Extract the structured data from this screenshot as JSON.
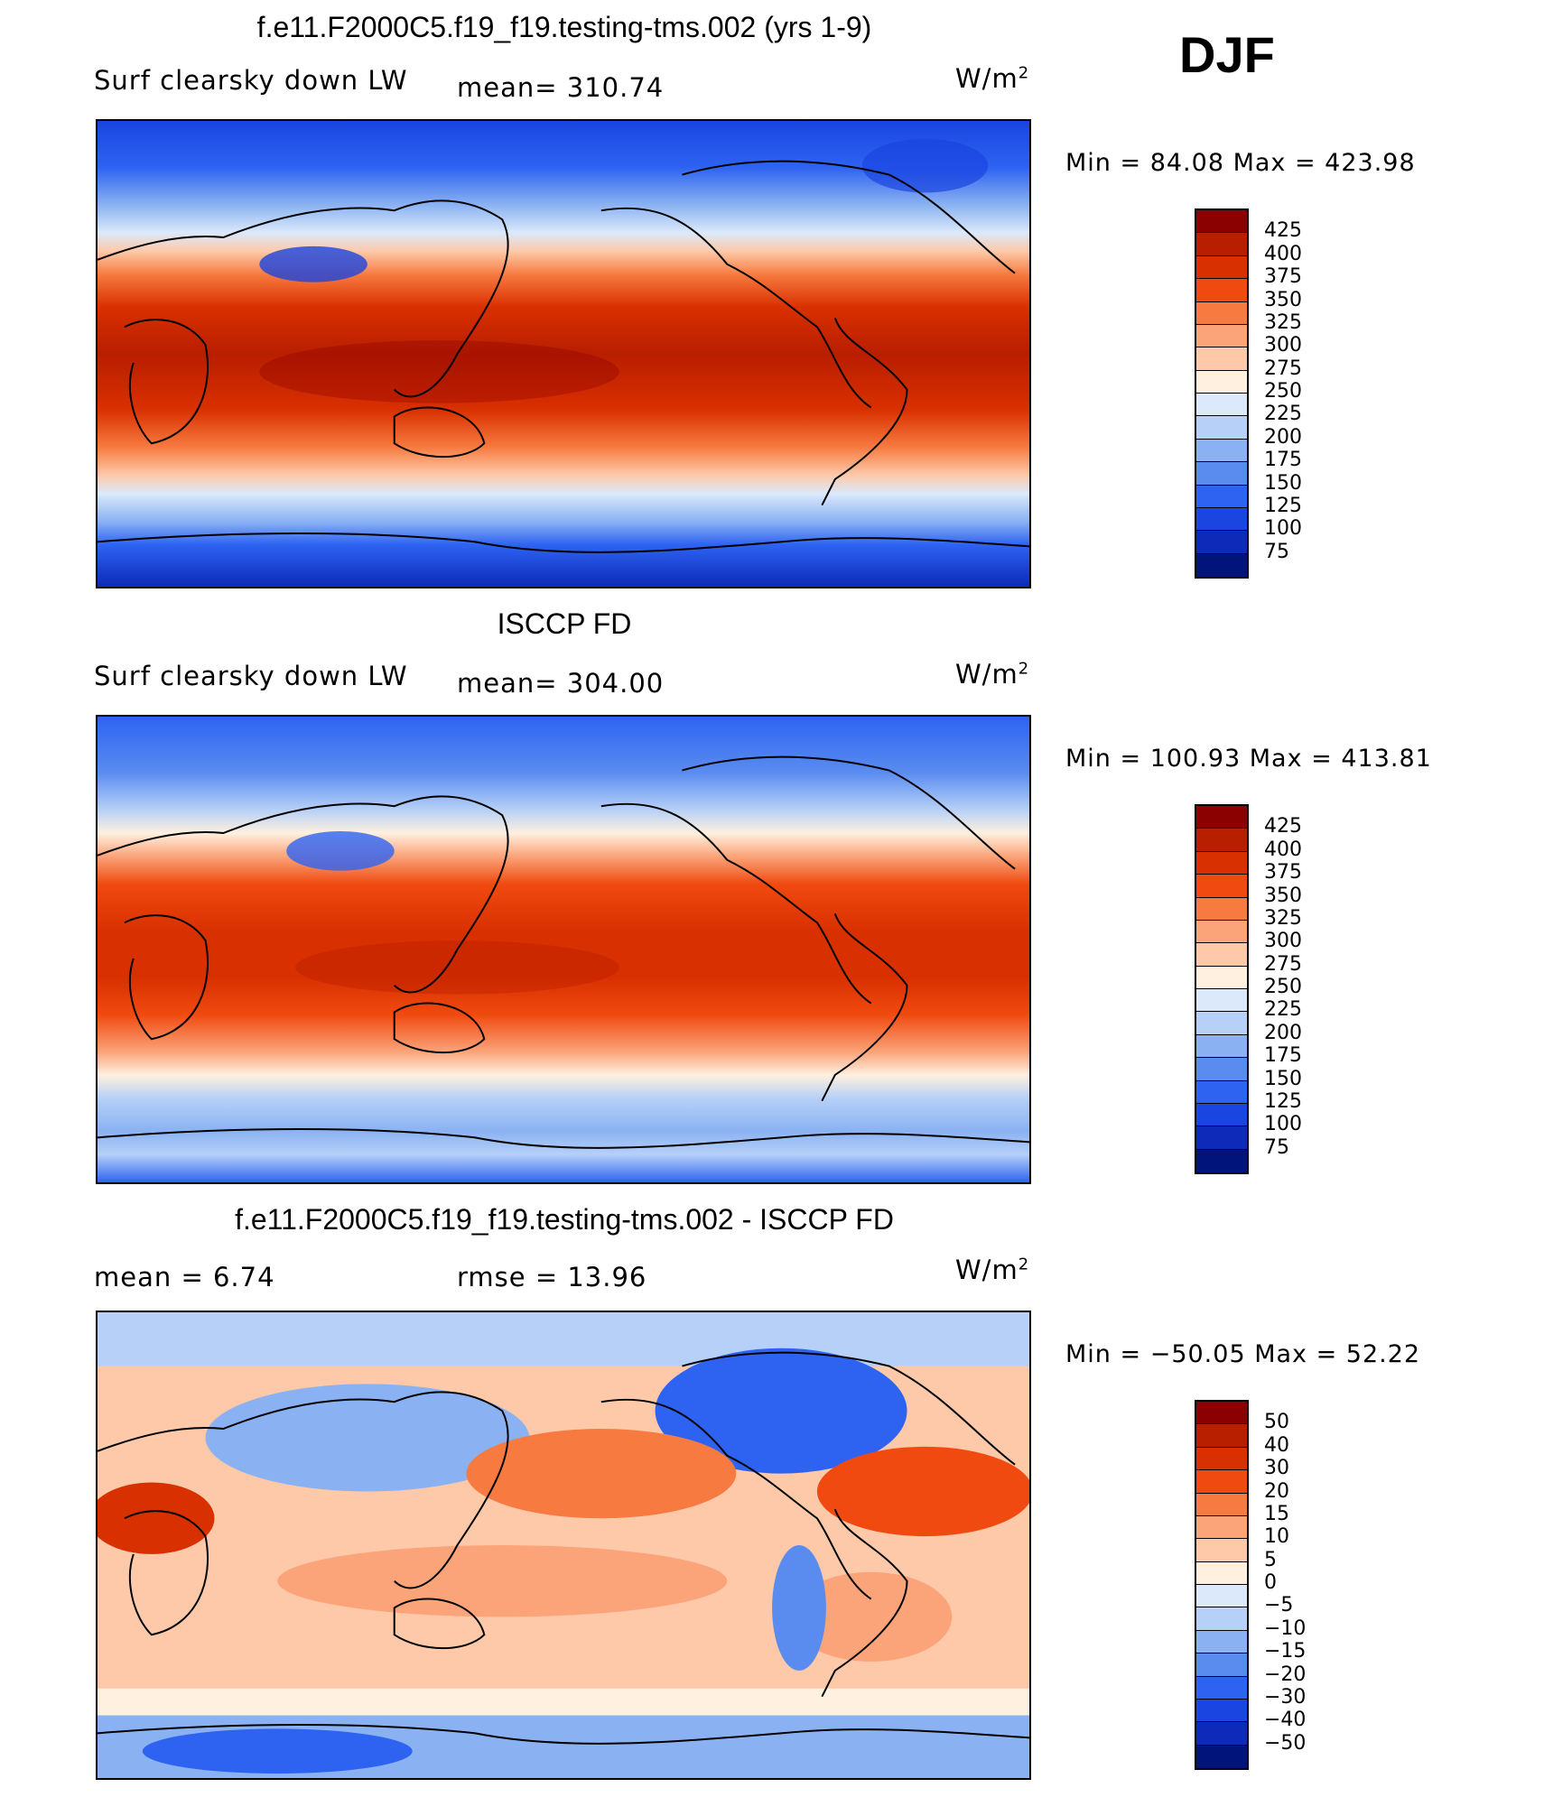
{
  "season": "DJF",
  "panels": [
    {
      "title": "f.e11.F2000C5.f19_f19.testing-tms.002 (yrs 1-9)",
      "left": "Surf clearsky down LW",
      "middle": "mean= 310.74",
      "units": "W/m",
      "units_sup": "2",
      "minmax": "Min =  84.08 Max = 423.98",
      "colorbar": {
        "labels": [
          "425",
          "400",
          "375",
          "350",
          "325",
          "300",
          "275",
          "250",
          "225",
          "200",
          "175",
          "150",
          "125",
          "100",
          "75"
        ],
        "colors": [
          "#8b0000",
          "#b81e00",
          "#d93000",
          "#f04a10",
          "#f77a40",
          "#fba47a",
          "#fdc9a9",
          "#fff0e0",
          "#dbe9fb",
          "#b6d0f7",
          "#8ab2f2",
          "#5a8cf0",
          "#2e63f2",
          "#1a45e0",
          "#0d2ab8",
          "#00147c"
        ]
      }
    },
    {
      "title": "ISCCP FD",
      "left": "Surf clearsky down LW",
      "middle": "mean= 304.00",
      "units": "W/m",
      "units_sup": "2",
      "minmax": "Min = 100.93 Max = 413.81",
      "colorbar": {
        "labels": [
          "425",
          "400",
          "375",
          "350",
          "325",
          "300",
          "275",
          "250",
          "225",
          "200",
          "175",
          "150",
          "125",
          "100",
          "75"
        ],
        "colors": [
          "#8b0000",
          "#b81e00",
          "#d93000",
          "#f04a10",
          "#f77a40",
          "#fba47a",
          "#fdc9a9",
          "#fff0e0",
          "#dbe9fb",
          "#b6d0f7",
          "#8ab2f2",
          "#5a8cf0",
          "#2e63f2",
          "#1a45e0",
          "#0d2ab8",
          "#00147c"
        ]
      }
    },
    {
      "title": "f.e11.F2000C5.f19_f19.testing-tms.002 - ISCCP FD",
      "left": "mean =    6.74",
      "middle": "rmse =   13.96",
      "units": "W/m",
      "units_sup": "2",
      "minmax": "Min = −50.05 Max =   52.22",
      "colorbar": {
        "labels": [
          "50",
          "40",
          "30",
          "20",
          "15",
          "10",
          "5",
          "0",
          "−5",
          "−10",
          "−15",
          "−20",
          "−30",
          "−40",
          "−50"
        ],
        "colors": [
          "#8b0000",
          "#b81e00",
          "#d93000",
          "#f04a10",
          "#f77a40",
          "#fba47a",
          "#fdc9a9",
          "#fff0e0",
          "#dbe9fb",
          "#b6d0f7",
          "#8ab2f2",
          "#5a8cf0",
          "#2e63f2",
          "#1a45e0",
          "#0d2ab8",
          "#00147c"
        ]
      }
    }
  ]
}
